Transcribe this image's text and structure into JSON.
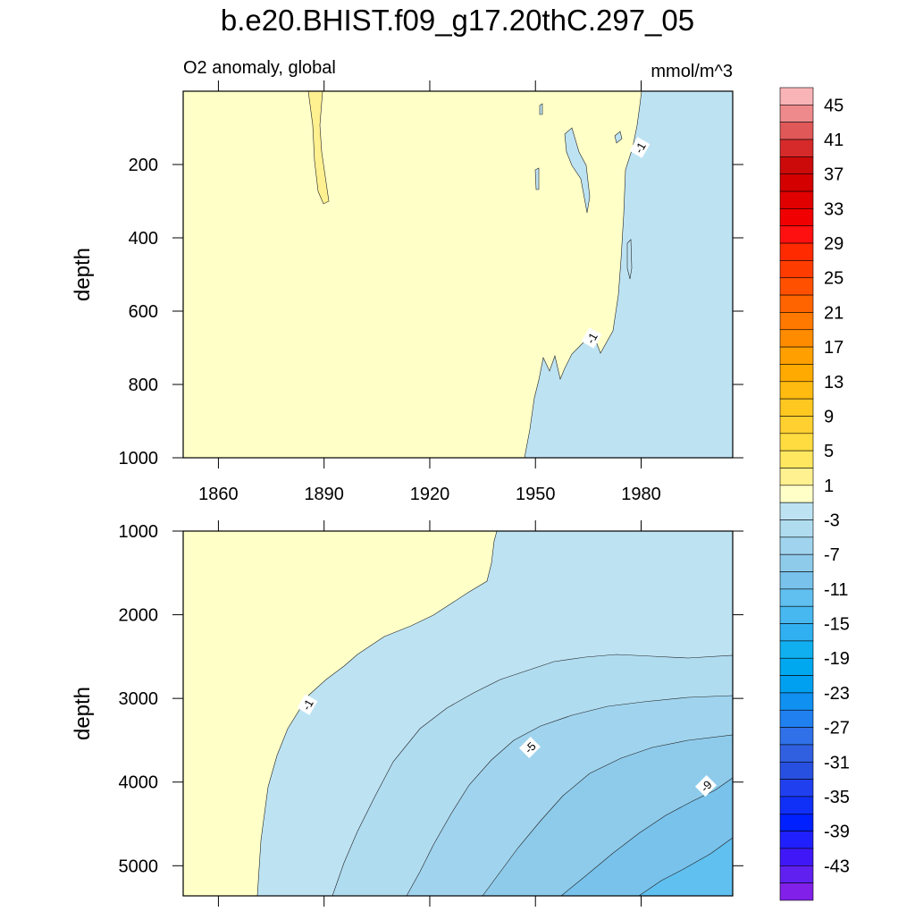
{
  "title": "b.e20.BHIST.f09_g17.20thC.297_05",
  "chart_data": [
    {
      "type": "contour",
      "left_title": "O2 anomaly, global",
      "right_title": "mmol/m^3",
      "y_label": "depth",
      "xlim": [
        1850,
        2006
      ],
      "xticks": [
        1860,
        1890,
        1920,
        1950,
        1980
      ],
      "show_xtick_labels": true,
      "ylim": [
        0,
        1000
      ],
      "yticks": [
        200,
        400,
        600,
        800,
        1000
      ],
      "reverse_y": true,
      "annotations": [
        "-1",
        "-1"
      ]
    },
    {
      "type": "contour",
      "y_label": "depth",
      "xlim": [
        1850,
        2006
      ],
      "xticks": [
        1860,
        1890,
        1920,
        1950,
        1980
      ],
      "show_xtick_labels": false,
      "ylim": [
        1000,
        5360
      ],
      "yticks": [
        1000,
        2000,
        3000,
        4000,
        5000
      ],
      "reverse_y": true,
      "annotations": [
        "-1",
        "-5",
        "-9"
      ]
    }
  ],
  "colorbar": {
    "lim": [
      47,
      -47
    ],
    "labels": [
      45,
      41,
      37,
      33,
      29,
      25,
      21,
      17,
      13,
      9,
      5,
      1,
      -3,
      -7,
      -11,
      -15,
      -19,
      -23,
      -27,
      -31,
      -35,
      -39,
      -43
    ],
    "colors": [
      "#f9b4b8",
      "#ee8a8c",
      "#e05858",
      "#d62a2a",
      "#cc0a0a",
      "#d40000",
      "#e00000",
      "#f00000",
      "#ff1010",
      "#ff2a00",
      "#ff3c00",
      "#ff5000",
      "#ff6400",
      "#ff7800",
      "#ff8c00",
      "#ffa000",
      "#ffaa00",
      "#ffbb10",
      "#ffc820",
      "#ffd030",
      "#ffdc40",
      "#ffe860",
      "#fff090",
      "#ffffc8",
      "#bde3f3",
      "#b0dcf0",
      "#a0d4ee",
      "#8ecbeb",
      "#78c2eb",
      "#60c0f0",
      "#48b8f0",
      "#30b0f0",
      "#10b0f0",
      "#00a8f0",
      "#00a0f0",
      "#1090f0",
      "#2080f0",
      "#3070e8",
      "#3060e0",
      "#2850e0",
      "#2040f0",
      "#1030f8",
      "#0020ff",
      "#2020ff",
      "#4018f8",
      "#6020f0",
      "#8020e8"
    ]
  }
}
